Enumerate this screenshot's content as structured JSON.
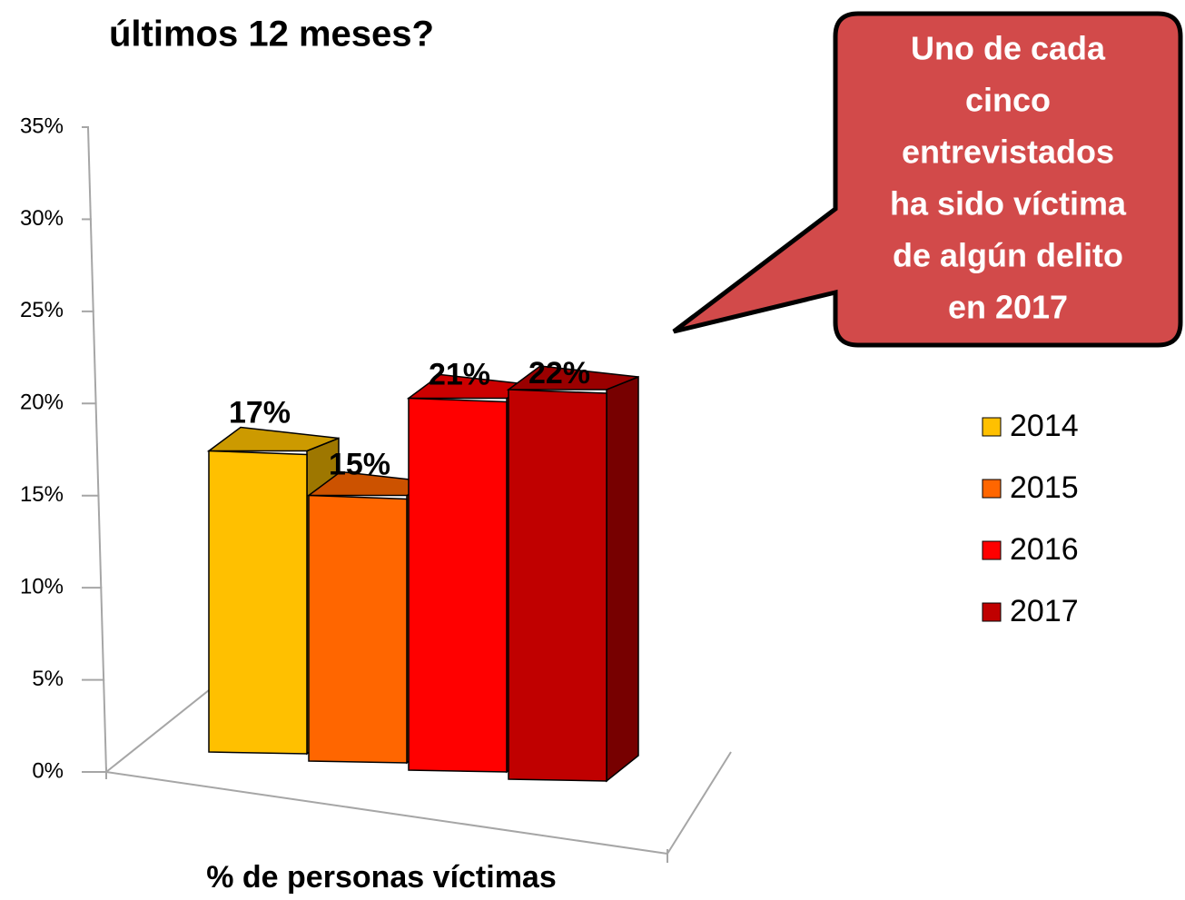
{
  "chart_data": {
    "type": "bar3d",
    "title": "últimos 12 meses?",
    "x_label": "% de personas víctimas",
    "categories": [
      "% de personas víctimas"
    ],
    "series": [
      {
        "name": "2014",
        "color": "#ffc000",
        "values": [
          17
        ],
        "value_labels": [
          "17%"
        ]
      },
      {
        "name": "2015",
        "color": "#ff6600",
        "values": [
          15
        ],
        "value_labels": [
          "15%"
        ]
      },
      {
        "name": "2016",
        "color": "#ff0000",
        "values": [
          21
        ],
        "value_labels": [
          "21%"
        ]
      },
      {
        "name": "2017",
        "color": "#c00000",
        "values": [
          22
        ],
        "value_labels": [
          "22%"
        ]
      }
    ],
    "ylim": [
      0,
      35
    ],
    "yticks": [
      {
        "value": 0,
        "label": "0%"
      },
      {
        "value": 5,
        "label": "5%"
      },
      {
        "value": 10,
        "label": "10%"
      },
      {
        "value": 15,
        "label": "15%"
      },
      {
        "value": 20,
        "label": "20%"
      },
      {
        "value": 25,
        "label": "25%"
      },
      {
        "value": 30,
        "label": "30%"
      },
      {
        "value": 35,
        "label": "35%"
      }
    ],
    "legend": "right",
    "annotation": [
      "Uno de cada",
      "cinco",
      "entrevistados",
      "ha sido víctima",
      "de algún delito",
      "en 2017"
    ]
  }
}
